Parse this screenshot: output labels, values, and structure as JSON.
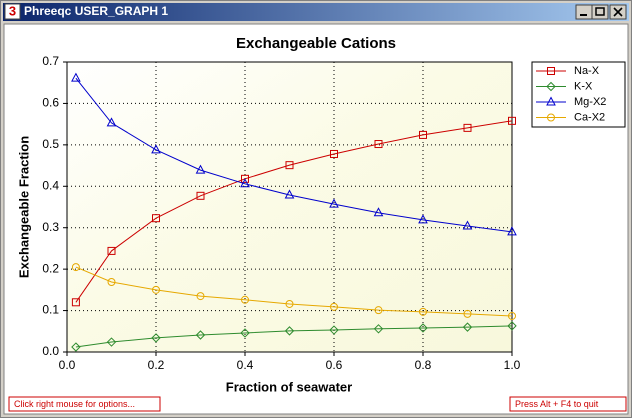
{
  "window": {
    "title": "Phreeqc USER_GRAPH 1",
    "icon": "3"
  },
  "status": {
    "left": "Click right mouse for options...",
    "right": "Press Alt + F4 to quit"
  },
  "chart_data": {
    "type": "line",
    "title": "Exchangeable Cations",
    "x_label": "Fraction of seawater",
    "y_label": "Exchangeable Fraction",
    "x": [
      0.02,
      0.1,
      0.2,
      0.3,
      0.4,
      0.5,
      0.6,
      0.7,
      0.8,
      0.9,
      1.0
    ],
    "series": [
      {
        "name": "Na-X",
        "color": "#cc0000",
        "marker": "square",
        "values": [
          0.12,
          0.244,
          0.323,
          0.377,
          0.418,
          0.451,
          0.478,
          0.502,
          0.524,
          0.541,
          0.558
        ]
      },
      {
        "name": "K-X",
        "color": "#2e8b2e",
        "marker": "diamond",
        "values": [
          0.012,
          0.024,
          0.034,
          0.041,
          0.046,
          0.051,
          0.053,
          0.056,
          0.058,
          0.06,
          0.063
        ]
      },
      {
        "name": "Mg-X2",
        "color": "#0000cc",
        "marker": "triangle",
        "values": [
          0.661,
          0.553,
          0.488,
          0.439,
          0.406,
          0.379,
          0.357,
          0.336,
          0.319,
          0.304,
          0.29
        ]
      },
      {
        "name": "Ca-X2",
        "color": "#e6a800",
        "marker": "circle",
        "values": [
          0.205,
          0.169,
          0.15,
          0.135,
          0.126,
          0.116,
          0.109,
          0.101,
          0.097,
          0.092,
          0.087
        ]
      }
    ],
    "xlim": [
      0,
      1
    ],
    "ylim": [
      0,
      0.7
    ],
    "xticks": [
      {
        "value": 0,
        "label": "0.0"
      },
      0.2,
      0.4,
      0.6,
      0.8,
      {
        "value": 1,
        "label": "1.0"
      }
    ],
    "yticks": [
      {
        "value": 0,
        "label": "0.0"
      },
      0.1,
      0.2,
      0.3,
      0.4,
      0.5,
      0.6,
      0.7
    ],
    "grid": true
  }
}
